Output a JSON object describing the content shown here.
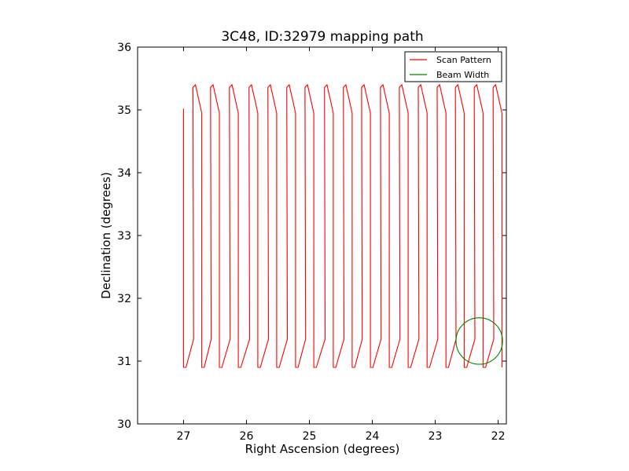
{
  "chart_data": {
    "type": "line",
    "title": "3C48, ID:32979 mapping path",
    "xlabel": "Right Ascension (degrees)",
    "ylabel": "Declination (degrees)",
    "xlim": [
      27.73,
      21.87
    ],
    "ylim": [
      30,
      36
    ],
    "x_inverted": true,
    "x_ticks": [
      27,
      26,
      25,
      24,
      23,
      22
    ],
    "y_ticks": [
      30,
      31,
      32,
      33,
      34,
      35,
      36
    ],
    "x_tick_labels": [
      "27",
      "26",
      "25",
      "24",
      "23",
      "22"
    ],
    "y_tick_labels": [
      "30",
      "31",
      "32",
      "33",
      "34",
      "35",
      "36"
    ],
    "grid": false,
    "legend_position": "top-right",
    "series": [
      {
        "name": "Scan Pattern",
        "color": "#ff0000",
        "kind": "path",
        "scan_start": {
          "ra": 27.0,
          "dec": 35.02
        },
        "legs": [
          {
            "ra_top": 26.83,
            "ra_bottom": 26.97
          },
          {
            "ra_top": 26.55,
            "ra_bottom": 26.67
          },
          {
            "ra_top": 26.25,
            "ra_bottom": 26.35
          },
          {
            "ra_top": 25.94,
            "ra_bottom": 26.05
          },
          {
            "ra_top": 25.64,
            "ra_bottom": 25.75
          },
          {
            "ra_top": 25.34,
            "ra_bottom": 25.45
          },
          {
            "ra_top": 25.05,
            "ra_bottom": 25.15
          },
          {
            "ra_top": 24.74,
            "ra_bottom": 24.85
          },
          {
            "ra_top": 24.44,
            "ra_bottom": 24.53
          },
          {
            "ra_top": 24.15,
            "ra_bottom": 24.22
          },
          {
            "ra_top": 23.85,
            "ra_bottom": 23.94
          },
          {
            "ra_top": 23.55,
            "ra_bottom": 23.62
          },
          {
            "ra_top": 23.25,
            "ra_bottom": 23.33
          },
          {
            "ra_top": 22.95,
            "ra_bottom": 23.04
          },
          {
            "ra_top": 22.66,
            "ra_bottom": 22.74
          },
          {
            "ra_top": 22.36,
            "ra_bottom": 22.43
          },
          {
            "ra_top": 22.06,
            "ra_bottom": 22.13
          }
        ],
        "dec_top": 35.4,
        "dec_upper_turn": 34.95,
        "dec_lower_turn": 31.35,
        "dec_bottom": 30.9
      },
      {
        "name": "Beam Width",
        "color": "#008000",
        "kind": "circle",
        "center": {
          "ra": 22.3,
          "dec": 31.32
        },
        "radius_deg": 0.37
      }
    ]
  }
}
